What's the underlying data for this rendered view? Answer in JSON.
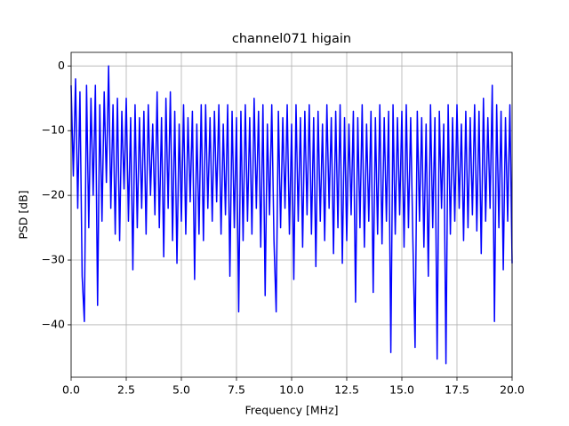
{
  "chart_data": {
    "type": "line",
    "title": "channel071 higain",
    "x_label": "Frequency [MHz]",
    "y_label": "PSD [dB]",
    "x": [
      0,
      0.1,
      0.2,
      0.3,
      0.4,
      0.5,
      0.6,
      0.7,
      0.8,
      0.9,
      1,
      1.1,
      1.2,
      1.3,
      1.4,
      1.5,
      1.6,
      1.7,
      1.8,
      1.9,
      2,
      2.1,
      2.2,
      2.3,
      2.4,
      2.5,
      2.6,
      2.7,
      2.8,
      2.9,
      3,
      3.1,
      3.2,
      3.3,
      3.4,
      3.5,
      3.6,
      3.7,
      3.8,
      3.9,
      4,
      4.1,
      4.2,
      4.3,
      4.4,
      4.5,
      4.6,
      4.7,
      4.8,
      4.9,
      5,
      5.1,
      5.2,
      5.3,
      5.4,
      5.5,
      5.6,
      5.7,
      5.8,
      5.9,
      6,
      6.1,
      6.2,
      6.3,
      6.4,
      6.5,
      6.6,
      6.7,
      6.8,
      6.9,
      7,
      7.1,
      7.2,
      7.3,
      7.4,
      7.5,
      7.6,
      7.7,
      7.8,
      7.9,
      8,
      8.1,
      8.2,
      8.3,
      8.4,
      8.5,
      8.6,
      8.7,
      8.8,
      8.9,
      9,
      9.1,
      9.2,
      9.3,
      9.4,
      9.5,
      9.6,
      9.7,
      9.8,
      9.9,
      10,
      10.1,
      10.2,
      10.3,
      10.4,
      10.5,
      10.6,
      10.7,
      10.8,
      10.9,
      11,
      11.1,
      11.2,
      11.3,
      11.4,
      11.5,
      11.6,
      11.7,
      11.8,
      11.9,
      12,
      12.1,
      12.2,
      12.3,
      12.4,
      12.5,
      12.6,
      12.7,
      12.8,
      12.9,
      13,
      13.1,
      13.2,
      13.3,
      13.4,
      13.5,
      13.6,
      13.7,
      13.8,
      13.9,
      14,
      14.1,
      14.2,
      14.3,
      14.4,
      14.5,
      14.6,
      14.7,
      14.8,
      14.9,
      15,
      15.1,
      15.2,
      15.3,
      15.4,
      15.5,
      15.6,
      15.7,
      15.8,
      15.9,
      16,
      16.1,
      16.2,
      16.3,
      16.4,
      16.5,
      16.6,
      16.7,
      16.8,
      16.9,
      17,
      17.1,
      17.2,
      17.3,
      17.4,
      17.5,
      17.6,
      17.7,
      17.8,
      17.9,
      18,
      18.1,
      18.2,
      18.3,
      18.4,
      18.5,
      18.6,
      18.7,
      18.8,
      18.9,
      19,
      19.1,
      19.2,
      19.3,
      19.4,
      19.5,
      19.6,
      19.7,
      19.8,
      19.9,
      20
    ],
    "series": [
      {
        "color": "#0000ff",
        "values": [
          -3,
          -17,
          -2,
          -22,
          -4,
          -32.5,
          -39.5,
          -3,
          -25,
          -5,
          -20,
          -3,
          -37,
          -6,
          -24,
          -4,
          -18,
          0,
          -22,
          -6,
          -26,
          -5,
          -27,
          -7,
          -19,
          -5,
          -24,
          -8,
          -31.5,
          -6,
          -25,
          -8,
          -22,
          -7,
          -26,
          -6,
          -20,
          -9,
          -23,
          -4,
          -25,
          -8,
          -29.5,
          -5,
          -22,
          -4,
          -27,
          -7,
          -30.5,
          -9,
          -24,
          -6,
          -26,
          -8,
          -21,
          -7,
          -33,
          -9,
          -26,
          -6,
          -27,
          -6,
          -22,
          -8,
          -24,
          -7,
          -21,
          -6,
          -26,
          -9,
          -23,
          -6,
          -32.5,
          -7,
          -25,
          -8,
          -38,
          -7,
          -27,
          -6,
          -24,
          -8,
          -26,
          -5,
          -22,
          -7,
          -28,
          -6,
          -35.5,
          -9,
          -23,
          -6,
          -27,
          -38,
          -7,
          -25,
          -8,
          -22,
          -6,
          -26,
          -9,
          -33,
          -6,
          -24,
          -8,
          -28,
          -7,
          -23,
          -6,
          -26,
          -8,
          -31,
          -7,
          -24,
          -9,
          -27,
          -6,
          -22,
          -8,
          -29,
          -7,
          -25,
          -6,
          -30.5,
          -8,
          -27,
          -9,
          -23,
          -7,
          -36.5,
          -8,
          -25,
          -6,
          -28,
          -9,
          -24,
          -7,
          -35,
          -8,
          -26,
          -6,
          -27.5,
          -8,
          -24,
          -7,
          -44.3,
          -6,
          -26,
          -8,
          -23,
          -7,
          -28,
          -6,
          -25,
          -8,
          -27,
          -43.5,
          -7,
          -24,
          -8,
          -28,
          -9,
          -32.5,
          -6,
          -25,
          -8,
          -45.3,
          -7,
          -22,
          -9,
          -46,
          -6,
          -26,
          -8,
          -24,
          -6,
          -22,
          -9,
          -27,
          -7,
          -25,
          -8,
          -23,
          -6,
          -25.5,
          -7,
          -29,
          -5,
          -24,
          -8,
          -22,
          -3,
          -39.5,
          -6,
          -25,
          -7,
          -31.5,
          -8,
          -24,
          -6,
          -30.5
        ]
      }
    ],
    "xlim": [
      0,
      20
    ],
    "ylim": [
      -48.1,
      2.1
    ],
    "xticks": [
      {
        "value": 0,
        "label": "0.0"
      },
      2.5,
      {
        "value": 5,
        "label": "5.0"
      },
      7.5,
      {
        "value": 10,
        "label": "10.0"
      },
      12.5,
      {
        "value": 15,
        "label": "15.0"
      },
      17.5,
      {
        "value": 20,
        "label": "20.0"
      }
    ],
    "yticks": [
      0,
      {
        "value": -10,
        "label": "−10"
      },
      {
        "value": -20,
        "label": "−20"
      },
      {
        "value": -30,
        "label": "−30"
      },
      {
        "value": -40,
        "label": "−40"
      }
    ],
    "grid": true
  }
}
